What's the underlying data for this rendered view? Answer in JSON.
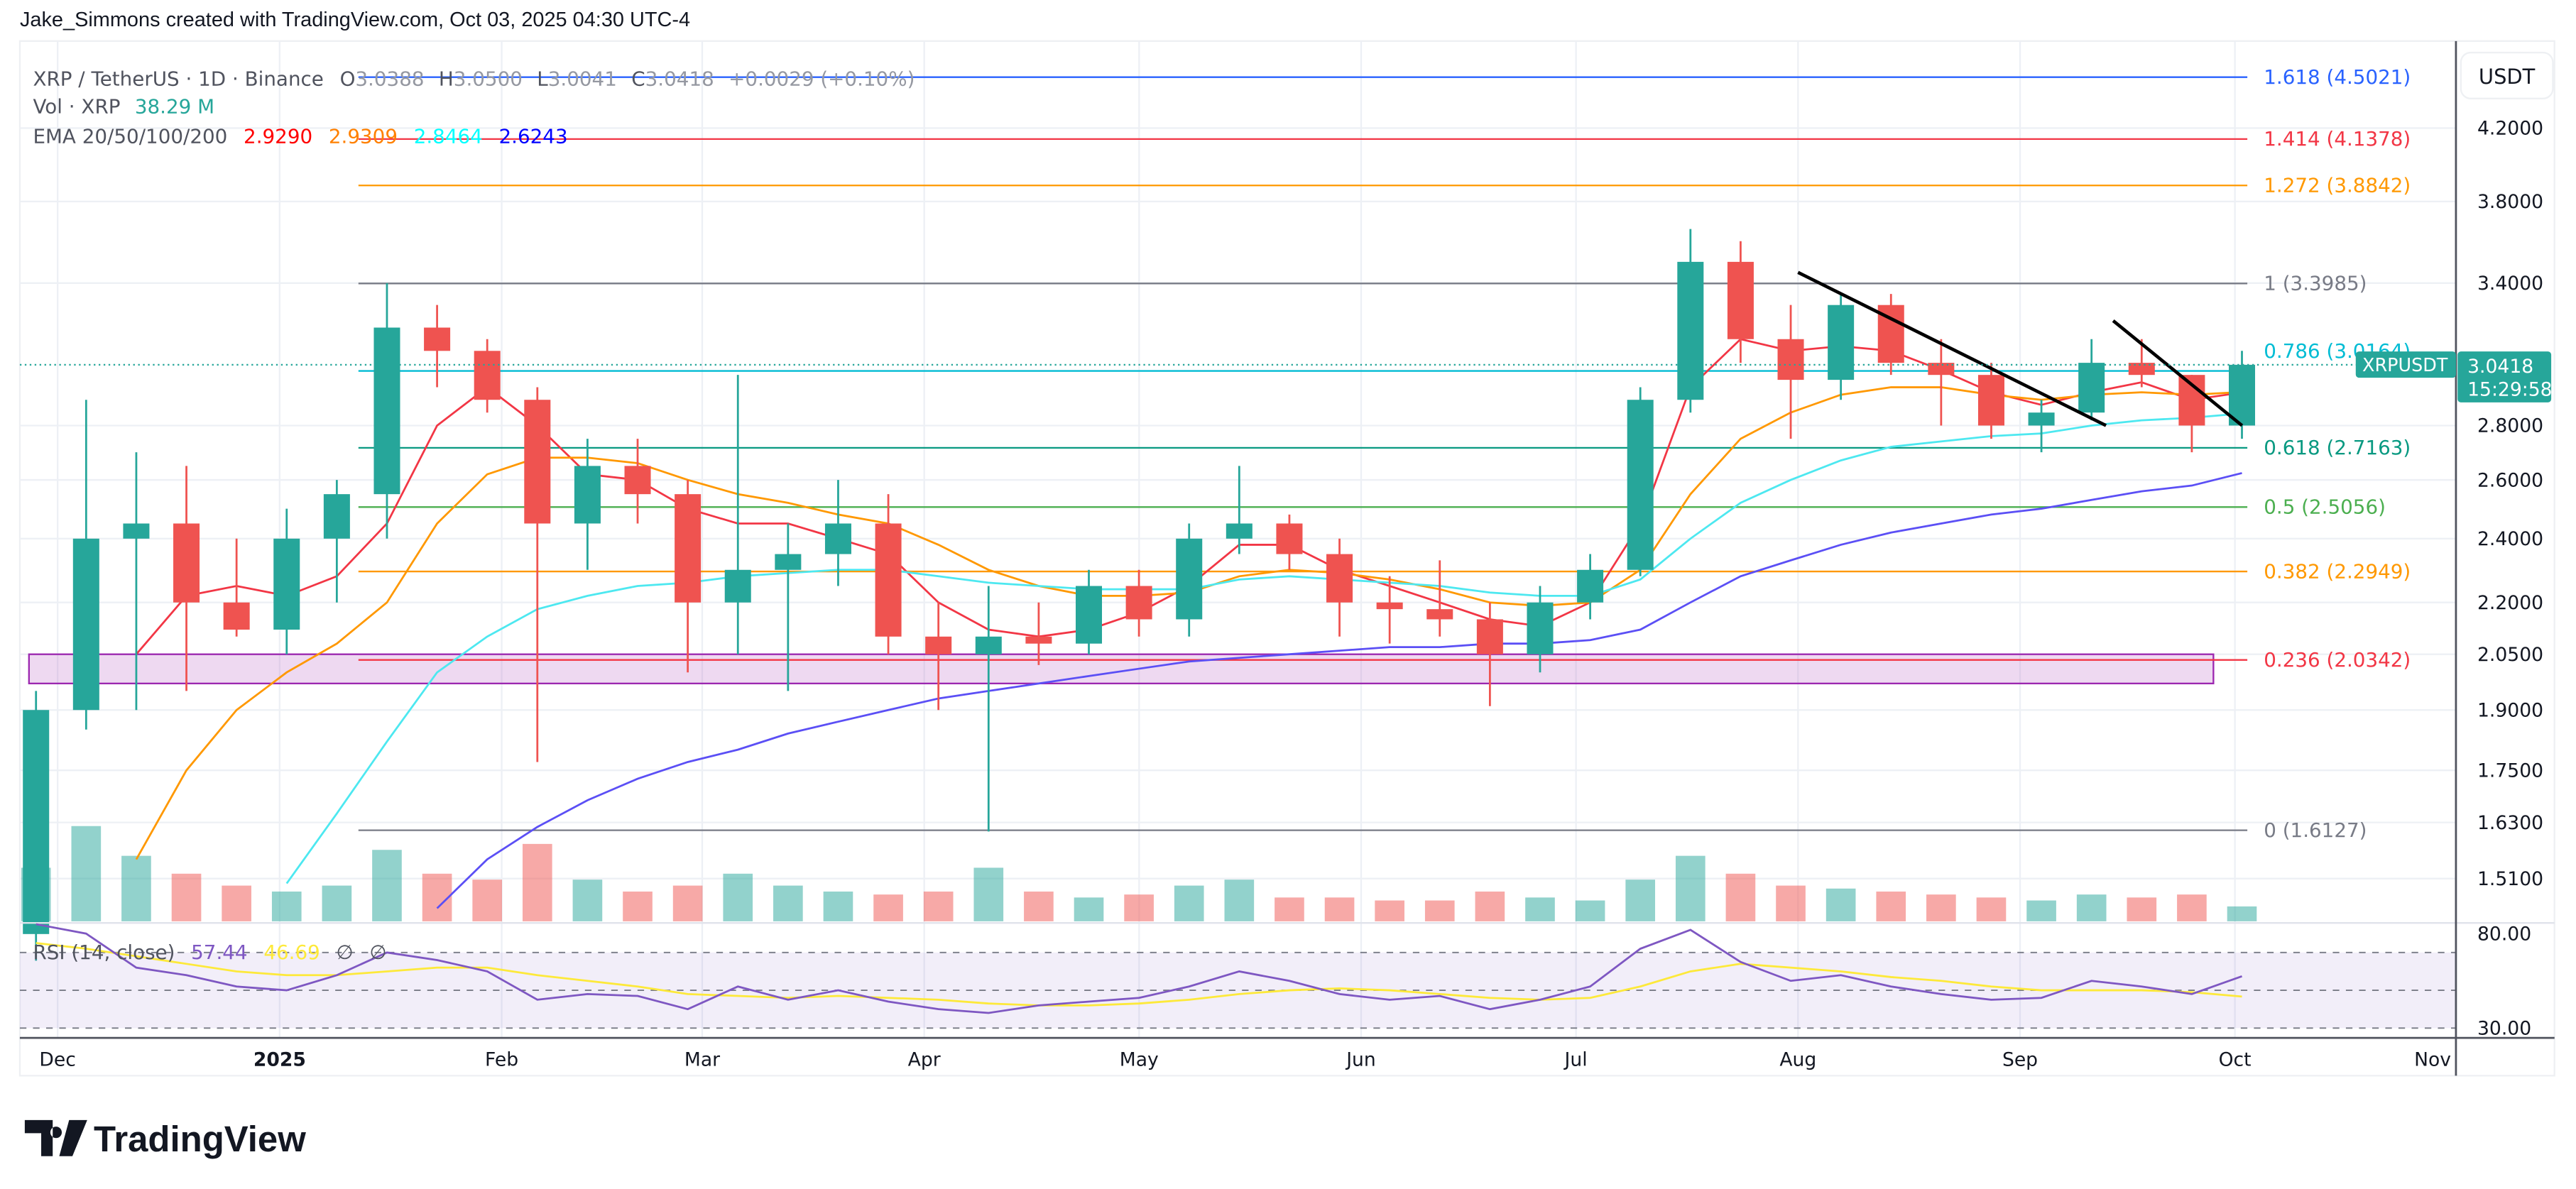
{
  "header": {
    "credit": "Jake_Simmons created with TradingView.com, Oct 03, 2025 04:30 UTC-4"
  },
  "legend": {
    "symbol": "XRP / TetherUS · 1D · Binance",
    "o_label": "O",
    "o_value": "3.0388",
    "h_label": "H",
    "h_value": "3.0500",
    "l_label": "L",
    "l_value": "3.0041",
    "c_label": "C",
    "c_value": "3.0418",
    "change": "+0.0029 (+0.10%)",
    "vol_label": "Vol · XRP",
    "vol_value": "38.29 M",
    "ema_label": "EMA 20/50/100/200",
    "ema20": "2.9290",
    "ema50": "2.9309",
    "ema100": "2.8464",
    "ema200": "2.6243",
    "rsi_label": "RSI (14, close)",
    "rsi_value": "57.44",
    "rsi_ma_value": "46.69",
    "rsi_na1": "∅",
    "rsi_na2": "∅"
  },
  "price_axis": {
    "currency": "USDT",
    "ticks": [
      "4.2000",
      "3.8000",
      "3.4000",
      "2.8000",
      "2.6000",
      "2.4000",
      "2.2000",
      "2.0500",
      "1.9000",
      "1.7500",
      "1.6300",
      "1.5100"
    ]
  },
  "rsi_axis": {
    "ticks": [
      "80.00",
      "30.00"
    ]
  },
  "time_axis": {
    "labels": [
      "Dec",
      "2025",
      "Feb",
      "Mar",
      "Apr",
      "May",
      "Jun",
      "Jul",
      "Aug",
      "Sep",
      "Oct",
      "Nov"
    ]
  },
  "last_price": {
    "symbol": "XRPUSDT",
    "price": "3.0418",
    "countdown": "15:29:58",
    "color": "#26a69a"
  },
  "colors": {
    "up": "#26a69a",
    "down": "#ef5350",
    "ema20": "#f23645",
    "ema50": "#ff9800",
    "ema100": "#4de8f0",
    "ema200": "#5b4ff5",
    "rsi": "#7e57c2",
    "rsi_ma": "#fde93a",
    "zone": "#ba68c8"
  },
  "brand": {
    "logo_text": "TradingView"
  },
  "chart_data": {
    "type": "candlestick",
    "title": "XRP / TetherUS · 1D · Binance",
    "y_scale": "log",
    "ylim": [
      1.45,
      4.6
    ],
    "grid": true,
    "note_resolution": "weekly approximation of daily candles",
    "dates": [
      "2024-11-25",
      "2024-12-02",
      "2024-12-09",
      "2024-12-16",
      "2024-12-23",
      "2024-12-30",
      "2025-01-06",
      "2025-01-13",
      "2025-01-20",
      "2025-01-27",
      "2025-02-03",
      "2025-02-10",
      "2025-02-17",
      "2025-02-24",
      "2025-03-03",
      "2025-03-10",
      "2025-03-17",
      "2025-03-24",
      "2025-03-31",
      "2025-04-07",
      "2025-04-14",
      "2025-04-21",
      "2025-04-28",
      "2025-05-05",
      "2025-05-12",
      "2025-05-19",
      "2025-05-26",
      "2025-06-02",
      "2025-06-09",
      "2025-06-16",
      "2025-06-23",
      "2025-06-30",
      "2025-07-07",
      "2025-07-14",
      "2025-07-21",
      "2025-07-28",
      "2025-08-04",
      "2025-08-11",
      "2025-08-18",
      "2025-08-25",
      "2025-09-01",
      "2025-09-08",
      "2025-09-15",
      "2025-09-22",
      "2025-09-29"
    ],
    "ohlc": [
      [
        1.4,
        1.95,
        1.35,
        1.9
      ],
      [
        1.9,
        2.9,
        1.85,
        2.4
      ],
      [
        2.4,
        2.7,
        1.9,
        2.45
      ],
      [
        2.45,
        2.65,
        1.95,
        2.2
      ],
      [
        2.2,
        2.4,
        2.1,
        2.12
      ],
      [
        2.12,
        2.5,
        2.05,
        2.4
      ],
      [
        2.4,
        2.6,
        2.2,
        2.55
      ],
      [
        2.55,
        3.4,
        2.4,
        3.2
      ],
      [
        3.2,
        3.3,
        2.95,
        3.1
      ],
      [
        3.1,
        3.15,
        2.85,
        2.9
      ],
      [
        2.9,
        2.95,
        1.77,
        2.45
      ],
      [
        2.45,
        2.75,
        2.3,
        2.65
      ],
      [
        2.65,
        2.75,
        2.45,
        2.55
      ],
      [
        2.55,
        2.6,
        2.0,
        2.2
      ],
      [
        2.2,
        3.0,
        2.05,
        2.3
      ],
      [
        2.3,
        2.45,
        1.95,
        2.35
      ],
      [
        2.35,
        2.6,
        2.25,
        2.45
      ],
      [
        2.45,
        2.55,
        2.05,
        2.1
      ],
      [
        2.1,
        2.2,
        1.9,
        2.05
      ],
      [
        2.05,
        2.25,
        1.61,
        2.1
      ],
      [
        2.1,
        2.2,
        2.02,
        2.08
      ],
      [
        2.08,
        2.3,
        2.05,
        2.25
      ],
      [
        2.25,
        2.3,
        2.1,
        2.15
      ],
      [
        2.15,
        2.45,
        2.1,
        2.4
      ],
      [
        2.4,
        2.65,
        2.35,
        2.45
      ],
      [
        2.45,
        2.48,
        2.3,
        2.35
      ],
      [
        2.35,
        2.4,
        2.1,
        2.2
      ],
      [
        2.2,
        2.28,
        2.08,
        2.18
      ],
      [
        2.18,
        2.33,
        2.1,
        2.15
      ],
      [
        2.15,
        2.2,
        1.91,
        2.05
      ],
      [
        2.05,
        2.25,
        2.0,
        2.2
      ],
      [
        2.2,
        2.35,
        2.15,
        2.3
      ],
      [
        2.3,
        2.95,
        2.28,
        2.9
      ],
      [
        2.9,
        3.66,
        2.85,
        3.5
      ],
      [
        3.5,
        3.6,
        3.05,
        3.15
      ],
      [
        3.15,
        3.3,
        2.75,
        2.98
      ],
      [
        2.98,
        3.35,
        2.9,
        3.3
      ],
      [
        3.3,
        3.35,
        3.0,
        3.05
      ],
      [
        3.05,
        3.15,
        2.8,
        3.0
      ],
      [
        3.0,
        3.05,
        2.75,
        2.8
      ],
      [
        2.8,
        2.9,
        2.7,
        2.85
      ],
      [
        2.85,
        3.15,
        2.82,
        3.05
      ],
      [
        3.05,
        3.15,
        2.95,
        3.0
      ],
      [
        3.0,
        3.0,
        2.7,
        2.8
      ],
      [
        2.8,
        3.1,
        2.75,
        3.0418
      ]
    ],
    "volume": [
      900,
      1600,
      1100,
      800,
      600,
      500,
      600,
      1200,
      800,
      700,
      1300,
      700,
      500,
      600,
      800,
      600,
      500,
      450,
      500,
      900,
      500,
      400,
      450,
      600,
      700,
      400,
      400,
      350,
      350,
      500,
      400,
      350,
      700,
      1100,
      800,
      600,
      550,
      500,
      450,
      400,
      350,
      450,
      400,
      450,
      250
    ],
    "ema": {
      "20": [
        null,
        null,
        2.05,
        2.22,
        2.25,
        2.22,
        2.28,
        2.45,
        2.8,
        2.95,
        2.8,
        2.62,
        2.6,
        2.5,
        2.45,
        2.45,
        2.4,
        2.35,
        2.2,
        2.12,
        2.1,
        2.12,
        2.17,
        2.25,
        2.38,
        2.38,
        2.3,
        2.25,
        2.2,
        2.15,
        2.13,
        2.2,
        2.45,
        2.95,
        3.15,
        3.1,
        3.12,
        3.1,
        3.02,
        2.93,
        2.88,
        2.93,
        2.97,
        2.9,
        2.929
      ],
      "50": [
        null,
        null,
        1.55,
        1.75,
        1.9,
        2.0,
        2.08,
        2.2,
        2.45,
        2.62,
        2.68,
        2.68,
        2.66,
        2.6,
        2.55,
        2.52,
        2.48,
        2.45,
        2.38,
        2.3,
        2.25,
        2.22,
        2.22,
        2.23,
        2.28,
        2.3,
        2.29,
        2.27,
        2.24,
        2.2,
        2.19,
        2.2,
        2.3,
        2.55,
        2.75,
        2.85,
        2.92,
        2.95,
        2.95,
        2.92,
        2.9,
        2.92,
        2.93,
        2.92,
        2.9309
      ],
      "100": [
        null,
        null,
        null,
        null,
        null,
        1.5,
        1.65,
        1.82,
        2.0,
        2.1,
        2.18,
        2.22,
        2.25,
        2.26,
        2.28,
        2.29,
        2.3,
        2.3,
        2.28,
        2.26,
        2.25,
        2.24,
        2.24,
        2.24,
        2.27,
        2.28,
        2.27,
        2.26,
        2.25,
        2.23,
        2.22,
        2.22,
        2.27,
        2.4,
        2.52,
        2.6,
        2.67,
        2.72,
        2.74,
        2.76,
        2.77,
        2.8,
        2.82,
        2.83,
        2.8464
      ],
      "200": [
        null,
        null,
        null,
        null,
        null,
        null,
        null,
        null,
        1.45,
        1.55,
        1.62,
        1.68,
        1.73,
        1.77,
        1.8,
        1.84,
        1.87,
        1.9,
        1.93,
        1.95,
        1.97,
        1.99,
        2.01,
        2.03,
        2.04,
        2.05,
        2.06,
        2.07,
        2.07,
        2.08,
        2.08,
        2.09,
        2.12,
        2.2,
        2.28,
        2.33,
        2.38,
        2.42,
        2.45,
        2.48,
        2.5,
        2.53,
        2.56,
        2.58,
        2.6243
      ]
    },
    "rsi": [
      85,
      80,
      62,
      58,
      52,
      50,
      58,
      70,
      66,
      60,
      45,
      48,
      47,
      40,
      52,
      45,
      50,
      44,
      40,
      38,
      42,
      44,
      46,
      52,
      60,
      55,
      48,
      45,
      47,
      40,
      45,
      52,
      72,
      82,
      65,
      55,
      58,
      52,
      48,
      45,
      46,
      55,
      52,
      48,
      57.44
    ],
    "rsi_ma": [
      75,
      72,
      68,
      64,
      60,
      58,
      58,
      60,
      62,
      62,
      58,
      55,
      52,
      48,
      47,
      46,
      47,
      46,
      45,
      43,
      42,
      42,
      43,
      45,
      48,
      50,
      51,
      50,
      48,
      46,
      45,
      46,
      52,
      60,
      64,
      62,
      60,
      57,
      55,
      52,
      50,
      50,
      50,
      49,
      46.69
    ],
    "rsi_levels": [
      70,
      50,
      30
    ],
    "fib_levels": [
      {
        "level": "1.618",
        "price": "4.5021",
        "color": "#2962ff"
      },
      {
        "level": "1.414",
        "price": "4.1378",
        "color": "#f23645"
      },
      {
        "level": "1.272",
        "price": "3.8842",
        "color": "#ff9800"
      },
      {
        "level": "1",
        "price": "3.3985",
        "color": "#787b86"
      },
      {
        "level": "0.786",
        "price": "3.0164",
        "color": "#00bcd4"
      },
      {
        "level": "0.618",
        "price": "2.7163",
        "color": "#089981"
      },
      {
        "level": "0.5",
        "price": "2.5056",
        "color": "#4caf50"
      },
      {
        "level": "0.382",
        "price": "2.2949",
        "color": "#ff9800"
      },
      {
        "level": "0.236",
        "price": "2.0342",
        "color": "#f23645"
      },
      {
        "level": "0",
        "price": "1.6127",
        "color": "#787b86"
      }
    ],
    "fib_start_date": "2025-01-12",
    "support_zone": {
      "from_date": "2024-11-27",
      "to_date": "2025-09-28",
      "low": 1.97,
      "high": 2.05
    },
    "trendlines": [
      {
        "from": [
          "2025-08-01",
          3.45
        ],
        "to": [
          "2025-09-13",
          2.8
        ]
      },
      {
        "from": [
          "2025-09-14",
          3.23
        ],
        "to": [
          "2025-10-02",
          2.8
        ]
      }
    ]
  }
}
